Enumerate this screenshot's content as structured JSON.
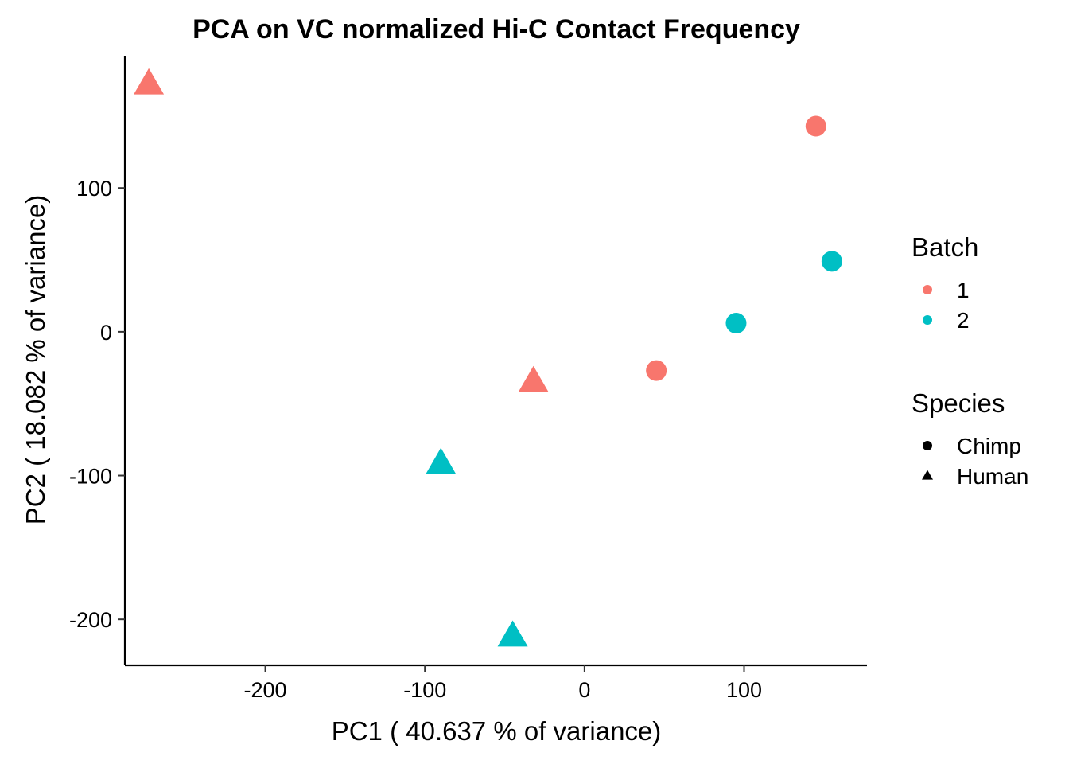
{
  "chart_data": {
    "type": "scatter",
    "title": "PCA on VC normalized Hi-C Contact Frequency",
    "xlabel": "PC1 ( 40.637 % of variance)",
    "ylabel": "PC2 ( 18.082 % of variance)",
    "xlim": [
      -288,
      177
    ],
    "ylim": [
      -232,
      192
    ],
    "x_ticks": [
      -200,
      -100,
      0,
      100
    ],
    "y_ticks": [
      -200,
      -100,
      0,
      100
    ],
    "grid": false,
    "legend_placement": "right",
    "colors": {
      "1": "#F8766D",
      "2": "#00BFC4"
    },
    "legend": {
      "batch_title": "Batch",
      "batch_items": [
        {
          "label": "1",
          "color": "#F8766D"
        },
        {
          "label": "2",
          "color": "#00BFC4"
        }
      ],
      "species_title": "Species",
      "species_items": [
        {
          "label": "Chimp",
          "shape": "circle"
        },
        {
          "label": "Human",
          "shape": "triangle"
        }
      ]
    },
    "points": [
      {
        "x": -273,
        "y": 172,
        "batch": "1",
        "species": "Human"
      },
      {
        "x": 145,
        "y": 143,
        "batch": "1",
        "species": "Chimp"
      },
      {
        "x": 155,
        "y": 49,
        "batch": "2",
        "species": "Chimp"
      },
      {
        "x": 95,
        "y": 6,
        "batch": "2",
        "species": "Chimp"
      },
      {
        "x": 45,
        "y": -27,
        "batch": "1",
        "species": "Chimp"
      },
      {
        "x": -32,
        "y": -35,
        "batch": "1",
        "species": "Human"
      },
      {
        "x": -90,
        "y": -92,
        "batch": "2",
        "species": "Human"
      },
      {
        "x": -45,
        "y": -212,
        "batch": "2",
        "species": "Human"
      }
    ]
  }
}
